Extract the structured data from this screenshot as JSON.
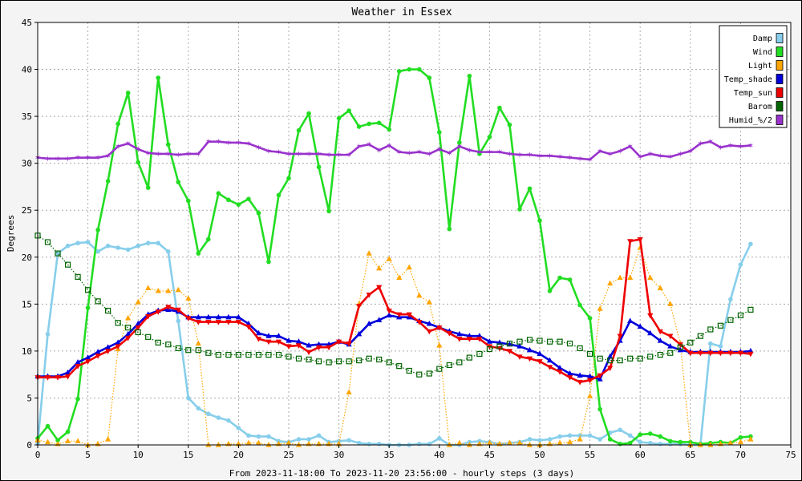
{
  "chart_data": {
    "type": "line",
    "title": "Weather in Essex",
    "xlabel": "From 2023-11-18:00 To 2023-11-20 23:56:00 - hourly steps (3 days)",
    "ylabel": "Degrees",
    "xlim": [
      0,
      75
    ],
    "ylim": [
      0,
      45
    ],
    "xticks": [
      0,
      5,
      10,
      15,
      20,
      25,
      30,
      35,
      40,
      45,
      50,
      55,
      60,
      65,
      70,
      75
    ],
    "yticks": [
      0,
      5,
      10,
      15,
      20,
      25,
      30,
      35,
      40,
      45
    ],
    "grid": true,
    "legend_position": "top-right",
    "x": [
      0,
      1,
      2,
      3,
      4,
      5,
      6,
      7,
      8,
      9,
      10,
      11,
      12,
      13,
      14,
      15,
      16,
      17,
      18,
      19,
      20,
      21,
      22,
      23,
      24,
      25,
      26,
      27,
      28,
      29,
      30,
      31,
      32,
      33,
      34,
      35,
      36,
      37,
      38,
      39,
      40,
      41,
      42,
      43,
      44,
      45,
      46,
      47,
      48,
      49,
      50,
      51,
      52,
      53,
      54,
      55,
      56,
      57,
      58,
      59,
      60,
      61,
      62,
      63,
      64,
      65,
      66,
      67,
      68,
      69,
      70,
      71
    ],
    "series": [
      {
        "name": "Damp",
        "color": "#87ceeb",
        "style": "solid",
        "marker": "circle",
        "values": [
          0.2,
          11.8,
          20.4,
          21.2,
          21.5,
          21.6,
          20.6,
          21.2,
          21.0,
          20.8,
          21.2,
          21.5,
          21.5,
          20.6,
          13.2,
          5.0,
          3.9,
          3.3,
          2.9,
          2.6,
          1.8,
          1.0,
          0.9,
          0.9,
          0.4,
          0.3,
          0.6,
          0.6,
          1.0,
          0.3,
          0.4,
          0.5,
          0.2,
          0.1,
          0.1,
          0.0,
          0.0,
          0.0,
          0.1,
          0.1,
          0.7,
          0.0,
          0.0,
          0.3,
          0.4,
          0.3,
          0.1,
          0.2,
          0.3,
          0.6,
          0.5,
          0.6,
          0.9,
          1.0,
          1.0,
          1.0,
          0.6,
          1.3,
          1.6,
          1.0,
          0.3,
          0.2,
          0.1,
          0.1,
          0.1,
          0.0,
          0.0,
          10.8,
          10.5,
          15.5,
          19.2,
          21.4
        ]
      },
      {
        "name": "Wind",
        "color": "#22dd22",
        "style": "solid",
        "marker": "circle",
        "values": [
          0.7,
          2.0,
          0.5,
          1.4,
          4.9,
          14.6,
          22.9,
          28.1,
          34.2,
          37.5,
          30.1,
          27.4,
          39.1,
          32.0,
          28.0,
          26.0,
          20.4,
          21.9,
          26.8,
          26.1,
          25.6,
          26.2,
          24.7,
          19.5,
          26.6,
          28.4,
          33.5,
          35.3,
          29.6,
          24.9,
          34.8,
          35.6,
          33.9,
          34.2,
          34.3,
          33.6,
          39.8,
          40.0,
          40.0,
          39.1,
          33.3,
          23.0,
          32.2,
          39.3,
          31.0,
          32.8,
          35.9,
          34.1,
          25.1,
          27.3,
          23.9,
          16.4,
          17.8,
          17.6,
          14.9,
          13.5,
          3.8,
          0.6,
          0.1,
          0.2,
          1.1,
          1.2,
          0.9,
          0.4,
          0.3,
          0.3,
          0.1,
          0.2,
          0.3,
          0.2,
          0.8,
          0.9
        ]
      },
      {
        "name": "Light",
        "color": "#ffa500",
        "style": "dotted",
        "marker": "triangle",
        "values": [
          0.5,
          0.3,
          0.1,
          0.4,
          0.4,
          0.0,
          0.1,
          0.6,
          10.2,
          13.5,
          15.2,
          16.7,
          16.4,
          16.4,
          16.5,
          15.6,
          10.8,
          0.0,
          0.0,
          0.1,
          0.1,
          0.2,
          0.2,
          0.0,
          0.1,
          0.2,
          0.0,
          0.1,
          0.1,
          0.1,
          0.1,
          5.6,
          15.0,
          20.4,
          18.8,
          19.8,
          17.8,
          18.9,
          15.9,
          15.2,
          10.6,
          0.0,
          0.2,
          0.0,
          0.1,
          0.2,
          0.1,
          0.2,
          0.2,
          0.0,
          0.0,
          0.1,
          0.2,
          0.3,
          0.6,
          5.2,
          14.5,
          17.2,
          17.8,
          17.8,
          21.0,
          17.8,
          16.7,
          15.0,
          10.8,
          0.0,
          0.0,
          0.0,
          0.1,
          0.2,
          0.3,
          0.6
        ]
      },
      {
        "name": "Temp_shade",
        "color": "#0000dd",
        "style": "solid",
        "marker": "triangle",
        "values": [
          7.3,
          7.3,
          7.3,
          7.7,
          8.8,
          9.3,
          9.9,
          10.4,
          10.9,
          11.8,
          12.9,
          13.9,
          14.3,
          14.4,
          14.2,
          13.6,
          13.6,
          13.6,
          13.6,
          13.6,
          13.6,
          12.9,
          11.9,
          11.6,
          11.6,
          11.1,
          11.0,
          10.6,
          10.7,
          10.7,
          11.0,
          10.7,
          11.8,
          12.9,
          13.3,
          13.8,
          13.6,
          13.6,
          13.2,
          12.9,
          12.5,
          12.1,
          11.8,
          11.6,
          11.6,
          11.0,
          10.9,
          10.7,
          10.5,
          10.1,
          9.7,
          9.0,
          8.2,
          7.6,
          7.4,
          7.3,
          7.0,
          9.4,
          11.1,
          13.2,
          12.6,
          11.9,
          11.1,
          10.5,
          10.1,
          9.9,
          9.9,
          9.9,
          9.9,
          9.9,
          9.9,
          10.0
        ]
      },
      {
        "name": "Temp_sun",
        "color": "#ee0000",
        "style": "solid",
        "marker": "triangle-down",
        "values": [
          7.2,
          7.2,
          7.2,
          7.3,
          8.4,
          8.9,
          9.5,
          10.0,
          10.5,
          11.4,
          12.5,
          13.7,
          14.2,
          14.7,
          14.4,
          13.5,
          13.1,
          13.1,
          13.1,
          13.1,
          13.1,
          12.6,
          11.3,
          11.0,
          11.0,
          10.5,
          10.6,
          9.9,
          10.4,
          10.4,
          11.0,
          10.8,
          14.8,
          16.0,
          16.8,
          14.3,
          13.9,
          13.9,
          13.1,
          12.1,
          12.5,
          11.9,
          11.3,
          11.3,
          11.3,
          10.5,
          10.3,
          10.0,
          9.4,
          9.2,
          8.9,
          8.3,
          7.8,
          7.2,
          6.7,
          6.9,
          7.4,
          8.2,
          11.6,
          21.7,
          21.9,
          13.8,
          12.1,
          11.6,
          10.7,
          9.8,
          9.8,
          9.8,
          9.8,
          9.8,
          9.8,
          9.7
        ]
      },
      {
        "name": "Barom",
        "color": "#006400",
        "style": "dotted",
        "marker": "square",
        "values": [
          22.3,
          21.6,
          20.4,
          19.2,
          17.9,
          16.5,
          15.3,
          14.3,
          13.0,
          12.5,
          12.0,
          11.5,
          10.9,
          10.7,
          10.3,
          10.1,
          10.1,
          9.8,
          9.6,
          9.6,
          9.6,
          9.6,
          9.6,
          9.6,
          9.6,
          9.4,
          9.2,
          9.1,
          8.9,
          8.8,
          8.9,
          8.9,
          9.0,
          9.2,
          9.1,
          8.8,
          8.4,
          7.9,
          7.5,
          7.6,
          8.1,
          8.5,
          8.8,
          9.3,
          9.7,
          10.2,
          10.5,
          10.8,
          11.0,
          11.2,
          11.1,
          11.0,
          11.0,
          10.8,
          10.3,
          9.7,
          9.2,
          9.0,
          9.0,
          9.2,
          9.2,
          9.4,
          9.6,
          9.8,
          10.4,
          10.9,
          11.6,
          12.3,
          12.7,
          13.3,
          13.8,
          14.4
        ]
      },
      {
        "name": "Humid_%/2",
        "color": "#9932cc",
        "style": "solid",
        "marker": "star",
        "values": [
          30.6,
          30.5,
          30.5,
          30.5,
          30.6,
          30.6,
          30.6,
          30.8,
          31.8,
          32.1,
          31.5,
          31.1,
          31.0,
          31.0,
          30.9,
          31.0,
          31.0,
          32.3,
          32.3,
          32.2,
          32.2,
          32.1,
          31.7,
          31.3,
          31.2,
          31.0,
          31.0,
          31.0,
          31.0,
          30.9,
          30.9,
          30.9,
          31.8,
          32.0,
          31.4,
          31.9,
          31.2,
          31.1,
          31.2,
          31.0,
          31.5,
          31.1,
          31.8,
          31.4,
          31.2,
          31.2,
          31.2,
          31.0,
          30.9,
          30.9,
          30.8,
          30.8,
          30.7,
          30.6,
          30.5,
          30.4,
          31.3,
          31.0,
          31.3,
          31.8,
          30.7,
          31.0,
          30.8,
          30.7,
          31.0,
          31.3,
          32.1,
          32.3,
          31.7,
          31.9,
          31.8,
          31.9
        ]
      }
    ]
  }
}
